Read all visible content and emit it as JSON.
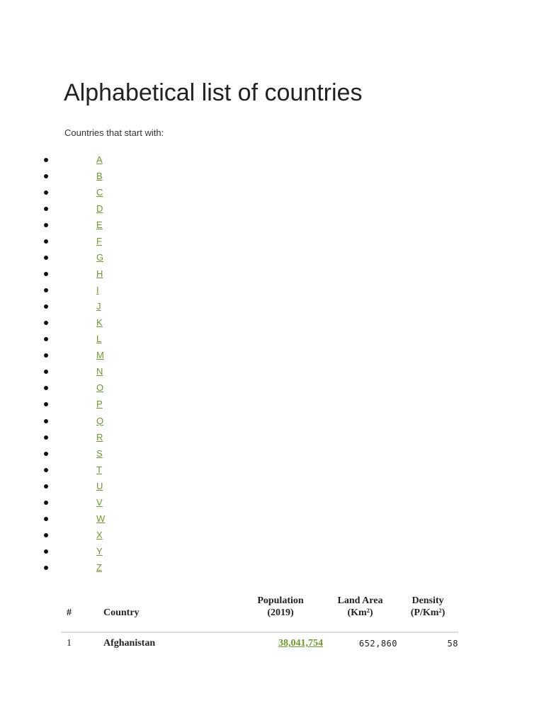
{
  "title": "Alphabetical list of countries",
  "intro": "Countries that start with:",
  "link_color": "#6a9a2a",
  "letters": [
    "A",
    "B",
    "C",
    "D",
    "E",
    "F",
    "G",
    "H",
    "I",
    "J",
    "K",
    "L",
    "M",
    "N",
    "O",
    "P",
    "Q",
    "R",
    "S",
    "T",
    "U",
    "V",
    "W",
    "X",
    "Y",
    "Z"
  ],
  "table": {
    "headers": {
      "rank": "#",
      "country": "Country",
      "population_l1": "Population",
      "population_l2": "(2019)",
      "land_l1": "Land Area",
      "land_l2": "(Km²)",
      "density_l1": "Density",
      "density_l2": "(P/Km²)"
    },
    "rows": [
      {
        "rank": "1",
        "country": "Afghanistan",
        "population": "38,041,754",
        "land_area": "652,860",
        "density": "58"
      }
    ]
  }
}
